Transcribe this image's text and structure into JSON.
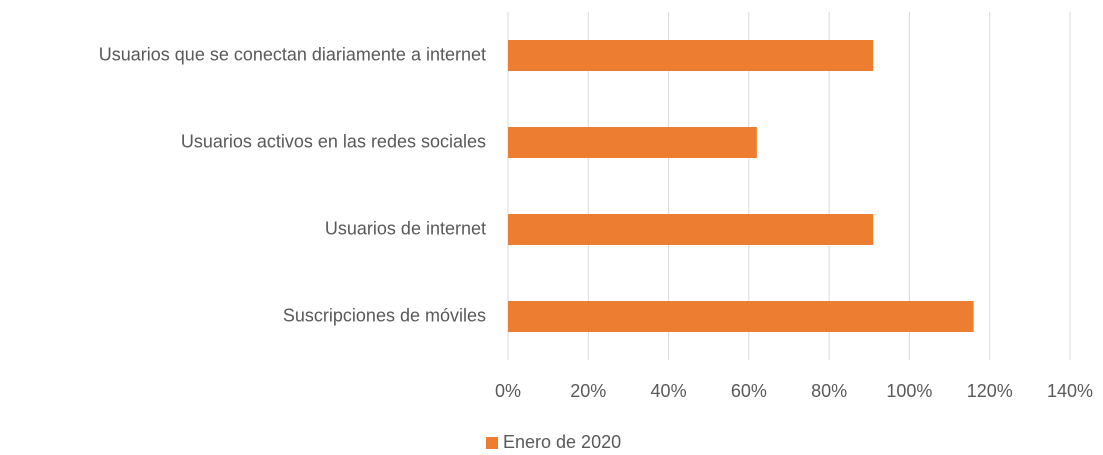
{
  "chart_data": {
    "type": "bar",
    "orientation": "horizontal",
    "categories": [
      "Usuarios que se conectan diariamente a internet",
      "Usuarios activos en las redes sociales",
      "Usuarios de internet",
      "Suscripciones de móviles"
    ],
    "series": [
      {
        "name": "Enero de 2020",
        "color": "#ed7d31",
        "values": [
          91,
          62,
          91,
          116
        ]
      }
    ],
    "xlim": [
      0,
      140
    ],
    "xticks": [
      {
        "value": 0,
        "label": "0%"
      },
      {
        "value": 20,
        "label": "20%"
      },
      {
        "value": 40,
        "label": "40%"
      },
      {
        "value": 60,
        "label": "60%"
      },
      {
        "value": 80,
        "label": "80%"
      },
      {
        "value": 100,
        "label": "100%"
      },
      {
        "value": 120,
        "label": "120%"
      },
      {
        "value": 140,
        "label": "140%"
      }
    ],
    "grid": true,
    "legend": "bottom"
  }
}
